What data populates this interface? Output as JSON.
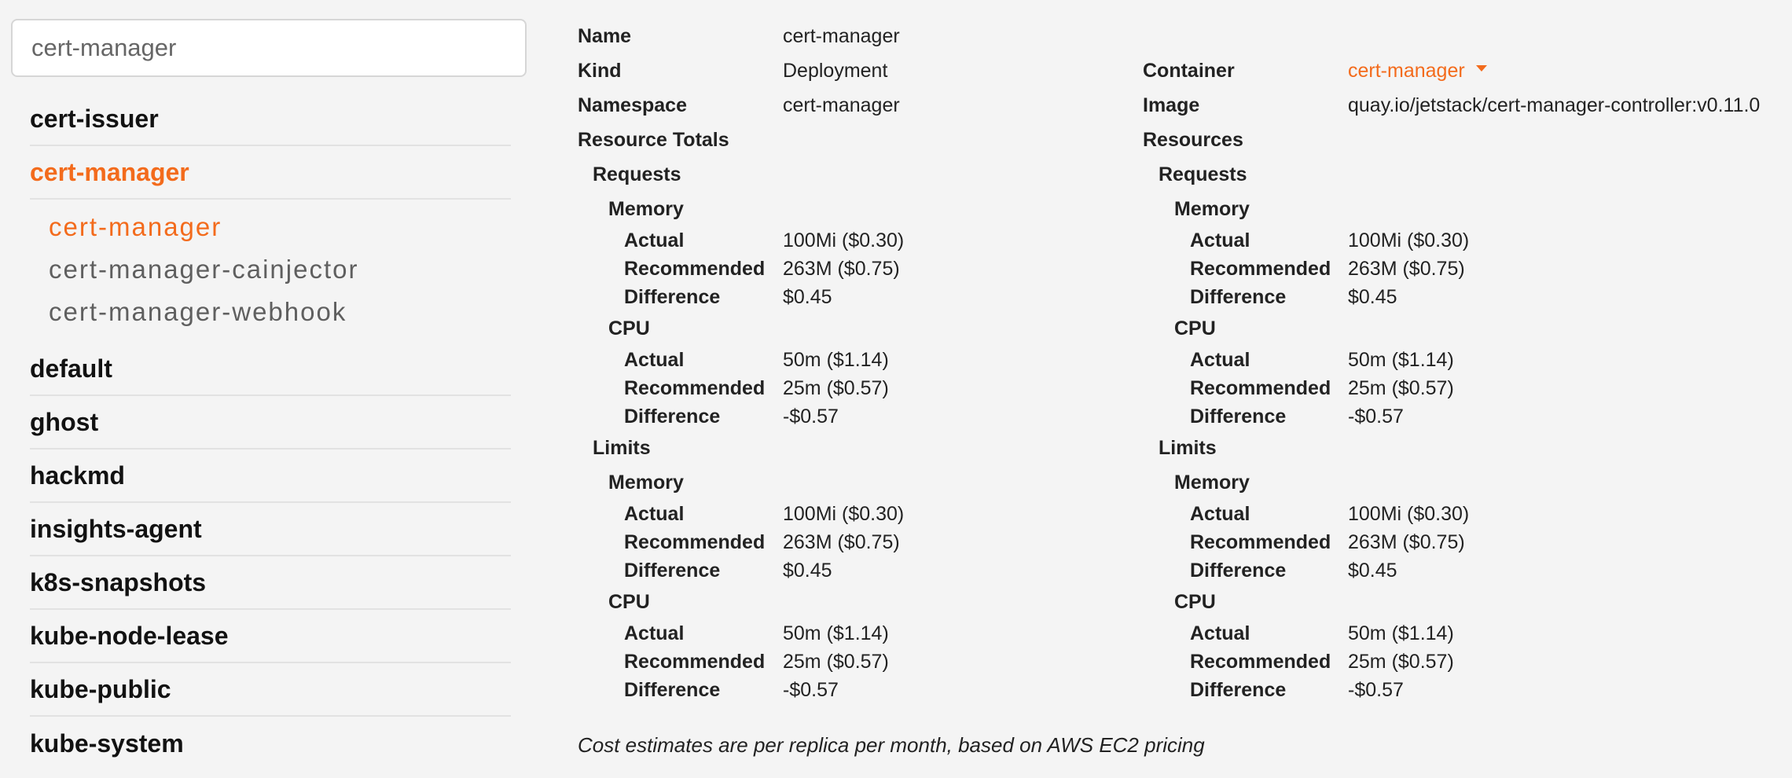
{
  "search": {
    "value": "cert-manager"
  },
  "sidebar": {
    "namespaces": [
      "cert-issuer",
      "cert-manager",
      "default",
      "ghost",
      "hackmd",
      "insights-agent",
      "k8s-snapshots",
      "kube-node-lease",
      "kube-public",
      "kube-system"
    ],
    "workloads": [
      "cert-manager",
      "cert-manager-cainjector",
      "cert-manager-webhook"
    ]
  },
  "labels": {
    "name": "Name",
    "kind": "Kind",
    "namespace": "Namespace",
    "resource_totals": "Resource Totals",
    "container": "Container",
    "image": "Image",
    "resources": "Resources",
    "requests": "Requests",
    "limits": "Limits",
    "memory": "Memory",
    "cpu": "CPU",
    "actual": "Actual",
    "recommended": "Recommended",
    "difference": "Difference"
  },
  "workload": {
    "name": "cert-manager",
    "kind": "Deployment",
    "namespace": "cert-manager",
    "container": "cert-manager",
    "image": "quay.io/jetstack/cert-manager-controller:v0.11.0"
  },
  "totals": {
    "requests": {
      "memory": {
        "actual": "100Mi ($0.30)",
        "recommended": "263M ($0.75)",
        "difference": "$0.45"
      },
      "cpu": {
        "actual": "50m ($1.14)",
        "recommended": "25m ($0.57)",
        "difference": "-$0.57"
      }
    },
    "limits": {
      "memory": {
        "actual": "100Mi ($0.30)",
        "recommended": "263M ($0.75)",
        "difference": "$0.45"
      },
      "cpu": {
        "actual": "50m ($1.14)",
        "recommended": "25m ($0.57)",
        "difference": "-$0.57"
      }
    }
  },
  "resources": {
    "requests": {
      "memory": {
        "actual": "100Mi ($0.30)",
        "recommended": "263M ($0.75)",
        "difference": "$0.45"
      },
      "cpu": {
        "actual": "50m ($1.14)",
        "recommended": "25m ($0.57)",
        "difference": "-$0.57"
      }
    },
    "limits": {
      "memory": {
        "actual": "100Mi ($0.30)",
        "recommended": "263M ($0.75)",
        "difference": "$0.45"
      },
      "cpu": {
        "actual": "50m ($1.14)",
        "recommended": "25m ($0.57)",
        "difference": "-$0.57"
      }
    }
  },
  "footnote": "Cost estimates are per replica per month, based on AWS EC2 pricing",
  "colors": {
    "accent": "#f36b1c",
    "background": "#f4f4f4"
  }
}
